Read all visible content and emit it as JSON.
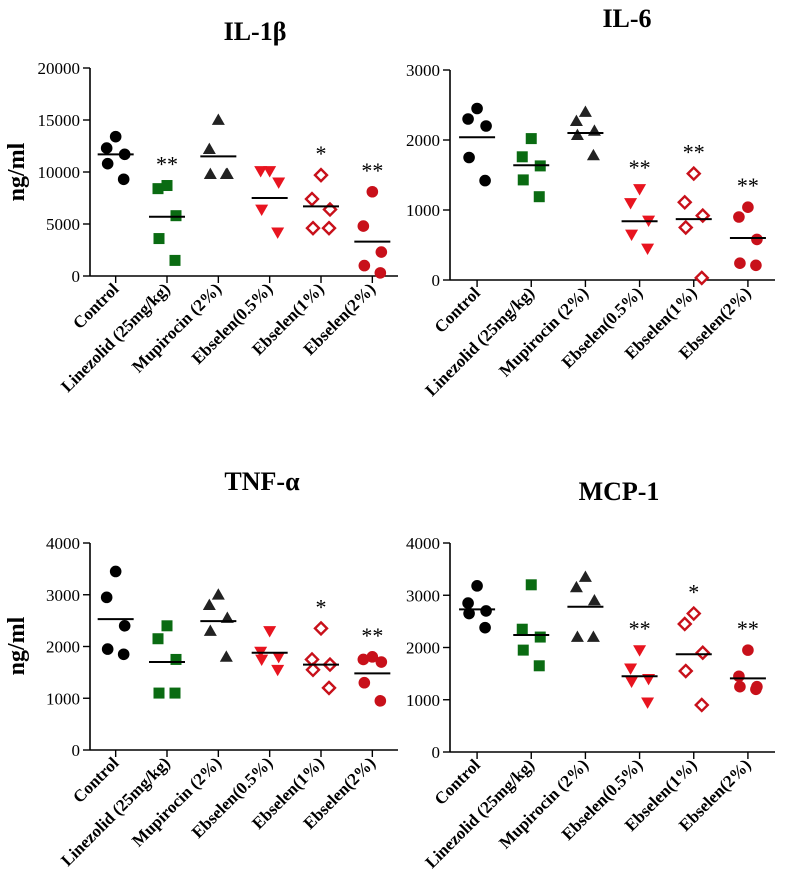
{
  "figure": {
    "ylabel": "ng/ml",
    "categories": [
      "Control",
      "Linezolid (25mg/kg)",
      "Mupirocin (2%)",
      "Ebselen(0.5%)",
      "Ebselen(1%)",
      "Ebselen(2%)"
    ]
  },
  "chart_data": [
    {
      "type": "scatter",
      "title": "IL-1β",
      "ylabel": "ng/ml",
      "ylim": [
        0,
        20000
      ],
      "yticks": [
        0,
        5000,
        10000,
        15000,
        20000
      ],
      "categories": [
        "Control",
        "Linezolid (25mg/kg)",
        "Mupirocin (2%)",
        "Ebselen(0.5%)",
        "Ebselen(1%)",
        "Ebselen(2%)"
      ],
      "series": [
        {
          "name": "Control",
          "marker": "circle",
          "color": "#000000",
          "values": [
            13400,
            12300,
            11700,
            10800,
            9300
          ],
          "mean": 11700,
          "sig": ""
        },
        {
          "name": "Linezolid (25mg/kg)",
          "marker": "square",
          "color": "#0a6b12",
          "values": [
            8700,
            8400,
            5800,
            3600,
            1500
          ],
          "mean": 5700,
          "sig": "**"
        },
        {
          "name": "Mupirocin (2%)",
          "marker": "triangle-up",
          "color": "#222222",
          "values": [
            15000,
            12200,
            9800,
            9800,
            9800
          ],
          "mean": 11500,
          "sig": ""
        },
        {
          "name": "Ebselen(0.5%)",
          "marker": "triangle-down",
          "color": "#e8141f",
          "values": [
            10100,
            10100,
            9000,
            6400,
            4200
          ],
          "mean": 7500,
          "sig": ""
        },
        {
          "name": "Ebselen(1%)",
          "marker": "diamond-open",
          "color": "#c8101a",
          "values": [
            9700,
            7400,
            6400,
            4600,
            4600
          ],
          "mean": 6700,
          "sig": "*"
        },
        {
          "name": "Ebselen(2%)",
          "marker": "circle",
          "color": "#c8101a",
          "values": [
            8100,
            4800,
            2300,
            1000,
            300
          ],
          "mean": 3300,
          "sig": "**"
        }
      ]
    },
    {
      "type": "scatter",
      "title": "IL-6",
      "ylabel": "",
      "ylim": [
        0,
        3000
      ],
      "yticks": [
        0,
        1000,
        2000,
        3000
      ],
      "categories": [
        "Control",
        "Linezolid (25mg/kg)",
        "Mupirocin (2%)",
        "Ebselen(0.5%)",
        "Ebselen(1%)",
        "Ebselen(2%)"
      ],
      "series": [
        {
          "name": "Control",
          "marker": "circle",
          "color": "#000000",
          "values": [
            2450,
            2300,
            2200,
            1750,
            1420
          ],
          "mean": 2040,
          "sig": ""
        },
        {
          "name": "Linezolid (25mg/kg)",
          "marker": "square",
          "color": "#0a6b12",
          "values": [
            2020,
            1760,
            1630,
            1430,
            1190
          ],
          "mean": 1640,
          "sig": ""
        },
        {
          "name": "Mupirocin (2%)",
          "marker": "triangle-up",
          "color": "#222222",
          "values": [
            2400,
            2270,
            2130,
            2070,
            1780
          ],
          "mean": 2100,
          "sig": ""
        },
        {
          "name": "Ebselen(0.5%)",
          "marker": "triangle-down",
          "color": "#e8141f",
          "values": [
            1300,
            1100,
            850,
            650,
            450
          ],
          "mean": 840,
          "sig": "**"
        },
        {
          "name": "Ebselen(1%)",
          "marker": "diamond-open",
          "color": "#c8101a",
          "values": [
            1520,
            1110,
            920,
            750,
            30
          ],
          "mean": 870,
          "sig": "**"
        },
        {
          "name": "Ebselen(2%)",
          "marker": "circle",
          "color": "#c8101a",
          "values": [
            1040,
            900,
            580,
            240,
            210
          ],
          "mean": 600,
          "sig": "**"
        }
      ]
    },
    {
      "type": "scatter",
      "title": "TNF-α",
      "ylabel": "ng/ml",
      "ylim": [
        0,
        4000
      ],
      "yticks": [
        0,
        1000,
        2000,
        3000,
        4000
      ],
      "categories": [
        "Control",
        "Linezolid (25mg/kg)",
        "Mupirocin (2%)",
        "Ebselen(0.5%)",
        "Ebselen(1%)",
        "Ebselen(2%)"
      ],
      "series": [
        {
          "name": "Control",
          "marker": "circle",
          "color": "#000000",
          "values": [
            3450,
            2950,
            2400,
            1950,
            1850
          ],
          "mean": 2530,
          "sig": ""
        },
        {
          "name": "Linezolid (25mg/kg)",
          "marker": "square",
          "color": "#0a6b12",
          "values": [
            2400,
            2150,
            1750,
            1100,
            1100
          ],
          "mean": 1700,
          "sig": ""
        },
        {
          "name": "Mupirocin (2%)",
          "marker": "triangle-up",
          "color": "#222222",
          "values": [
            3000,
            2800,
            2550,
            2300,
            1800
          ],
          "mean": 2490,
          "sig": ""
        },
        {
          "name": "Ebselen(0.5%)",
          "marker": "triangle-down",
          "color": "#e8141f",
          "values": [
            2300,
            1900,
            1800,
            1750,
            1550
          ],
          "mean": 1880,
          "sig": ""
        },
        {
          "name": "Ebselen(1%)",
          "marker": "diamond-open",
          "color": "#c8101a",
          "values": [
            2350,
            1750,
            1650,
            1550,
            1200
          ],
          "mean": 1650,
          "sig": "*"
        },
        {
          "name": "Ebselen(2%)",
          "marker": "circle",
          "color": "#c8101a",
          "values": [
            1800,
            1750,
            1700,
            1300,
            950
          ],
          "mean": 1480,
          "sig": "**"
        }
      ]
    },
    {
      "type": "scatter",
      "title": "MCP-1",
      "ylabel": "",
      "ylim": [
        0,
        4000
      ],
      "yticks": [
        0,
        1000,
        2000,
        3000,
        4000
      ],
      "categories": [
        "Control",
        "Linezolid (25mg/kg)",
        "Mupirocin (2%)",
        "Ebselen(0.5%)",
        "Ebselen(1%)",
        "Ebselen(2%)"
      ],
      "series": [
        {
          "name": "Control",
          "marker": "circle",
          "color": "#000000",
          "values": [
            3180,
            2850,
            2700,
            2650,
            2380
          ],
          "mean": 2730,
          "sig": ""
        },
        {
          "name": "Linezolid (25mg/kg)",
          "marker": "square",
          "color": "#0a6b12",
          "values": [
            3200,
            2350,
            2200,
            1950,
            1650
          ],
          "mean": 2240,
          "sig": ""
        },
        {
          "name": "Mupirocin (2%)",
          "marker": "triangle-up",
          "color": "#222222",
          "values": [
            3350,
            3150,
            2900,
            2200,
            2200
          ],
          "mean": 2780,
          "sig": ""
        },
        {
          "name": "Ebselen(0.5%)",
          "marker": "triangle-down",
          "color": "#e8141f",
          "values": [
            1950,
            1600,
            1400,
            1350,
            950
          ],
          "mean": 1450,
          "sig": "**"
        },
        {
          "name": "Ebselen(1%)",
          "marker": "diamond-open",
          "color": "#c8101a",
          "values": [
            2650,
            2450,
            1900,
            1550,
            900
          ],
          "mean": 1870,
          "sig": "*"
        },
        {
          "name": "Ebselen(2%)",
          "marker": "circle",
          "color": "#c8101a",
          "values": [
            1950,
            1450,
            1250,
            1250,
            1200
          ],
          "mean": 1410,
          "sig": "**"
        }
      ]
    }
  ]
}
